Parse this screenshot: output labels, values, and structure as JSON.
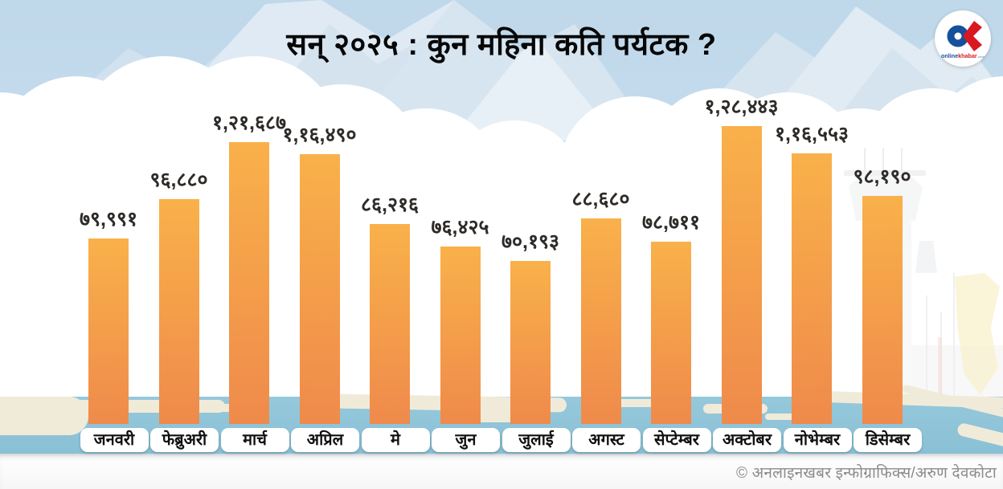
{
  "title": "सन् २०२५ : कुन महिना कति पर्यटक ?",
  "credit": "© अनलाइनखबर इन्फोग्राफिक्स/अरुण देवकोटा",
  "logo": {
    "online": "online",
    "khabar": "khabar",
    "suffix": ".com"
  },
  "colors": {
    "bar_top": "#F9B14A",
    "bar_bottom": "#EF8A4B",
    "sky": "#C3DAEA",
    "strip_blue": "#8EC4D9",
    "label_text": "#2E2B28",
    "logo_blue": "#15509C",
    "logo_red": "#D91920"
  },
  "chart_data": {
    "type": "bar",
    "title": "सन् २०२५ : कुन महिना कति पर्यटक ?",
    "categories": [
      "जनवरी",
      "फेब्रुअरी",
      "मार्च",
      "अप्रिल",
      "मे",
      "जुन",
      "जुलाई",
      "अगस्ट",
      "सेप्टेम्बर",
      "अक्टोबर",
      "नोभेम्बर",
      "डिसेम्बर"
    ],
    "values": [
      79991,
      96880,
      121687,
      116490,
      86216,
      76425,
      70193,
      88680,
      78711,
      128443,
      116553,
      98190
    ],
    "value_labels": [
      "७९,९९१",
      "९६,८८०",
      "१,२१,६८७",
      "१,१६,४९०",
      "८६,२१६",
      "७६,४२५",
      "७०,१९३",
      "८८,६८०",
      "७८,७११",
      "१,२८,४४३",
      "१,१६,५५३",
      "९८,१९०"
    ],
    "xlabel": "",
    "ylabel": "",
    "ylim": [
      0,
      128443
    ],
    "grid": false,
    "legend": "none"
  }
}
